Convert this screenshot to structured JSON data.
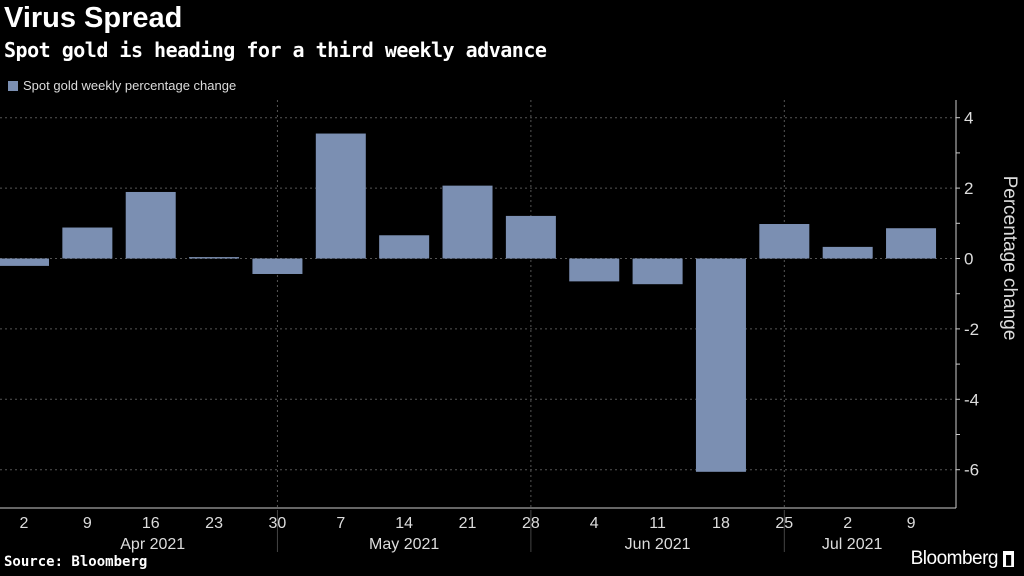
{
  "header": {
    "title": "Virus Spread",
    "subtitle": "Spot gold is heading for a third weekly advance"
  },
  "footer": {
    "source": "Source: Bloomberg",
    "brand": "Bloomberg"
  },
  "colors": {
    "bar": "#7b8fb2",
    "background": "#000000",
    "grid": "#666666"
  },
  "chart_data": {
    "type": "bar",
    "title": "Virus Spread",
    "subtitle": "Spot gold is heading for a third weekly advance",
    "legend": [
      "Spot gold weekly percentage change"
    ],
    "legend_position": "top-left",
    "ylabel": "Percentage change",
    "ylim": [
      -6.5,
      4.5
    ],
    "yticks": [
      4,
      2,
      0,
      -2,
      -4,
      -6
    ],
    "grid": true,
    "categories": [
      "2",
      "9",
      "16",
      "23",
      "30",
      "7",
      "14",
      "21",
      "28",
      "4",
      "11",
      "18",
      "25",
      "2",
      "9"
    ],
    "months": [
      {
        "label": "Apr 2021"
      },
      {
        "label": "May 2021"
      },
      {
        "label": "Jun 2021"
      },
      {
        "label": "Jul 2021"
      }
    ],
    "series": [
      {
        "name": "Spot gold weekly percentage change",
        "values": [
          -0.21,
          0.88,
          1.89,
          0.04,
          -0.44,
          3.55,
          0.66,
          2.07,
          1.21,
          -0.65,
          -0.73,
          -6.06,
          0.98,
          0.33,
          0.86
        ]
      }
    ]
  }
}
